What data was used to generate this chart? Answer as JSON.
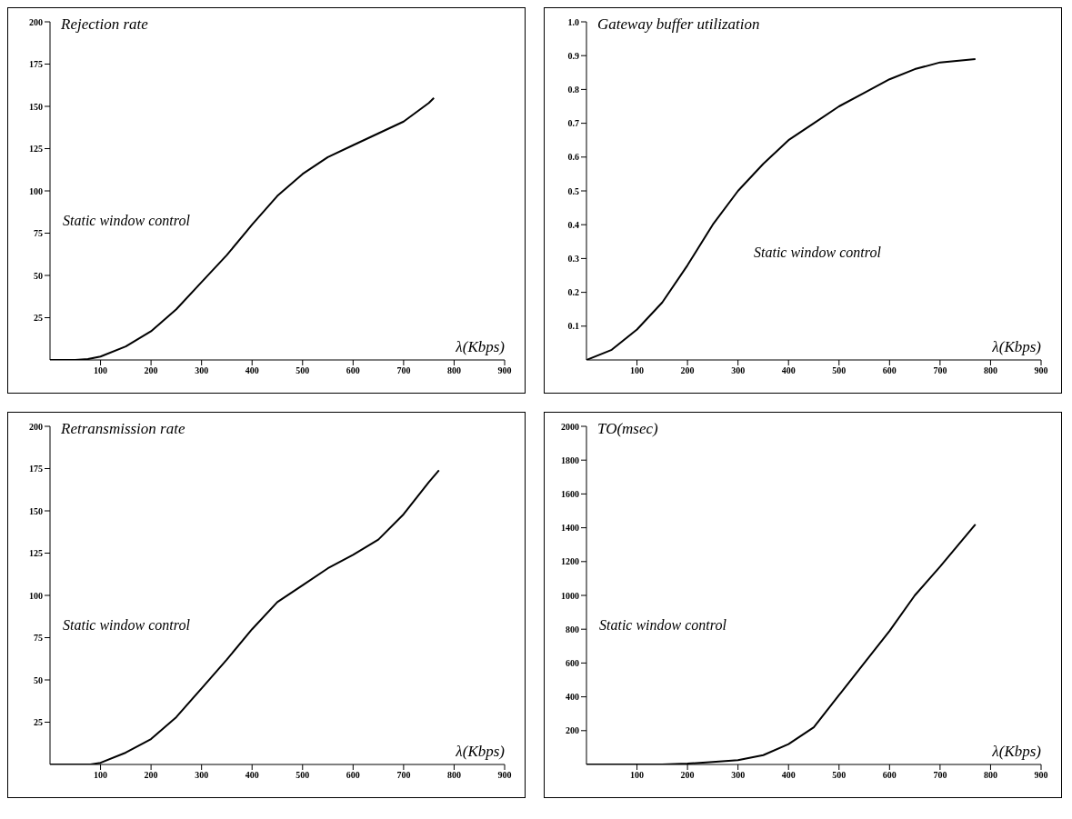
{
  "chart_data": [
    {
      "type": "line",
      "title": "Rejection rate",
      "xlabel": "λ(Kbps)",
      "annotations": [
        "Static window control"
      ],
      "xlim": [
        0,
        900
      ],
      "xticks": [
        100,
        200,
        300,
        400,
        500,
        600,
        700,
        800,
        900
      ],
      "ylim": [
        0,
        200
      ],
      "yticks": [
        25,
        50,
        75,
        100,
        125,
        150,
        175,
        200
      ],
      "grid": false,
      "legend": false,
      "marker": "none",
      "line_style": "solid",
      "series": [
        {
          "color": "#000000",
          "x": [
            0,
            50,
            75,
            100,
            150,
            200,
            250,
            300,
            350,
            400,
            450,
            500,
            550,
            600,
            650,
            700,
            750,
            760
          ],
          "values": [
            0,
            0,
            0.5,
            2,
            8,
            17,
            30,
            46,
            62,
            80,
            97,
            110,
            120,
            127,
            134,
            141,
            152,
            155
          ]
        }
      ]
    },
    {
      "type": "line",
      "title": "Gateway buffer utilization",
      "xlabel": "λ(Kbps)",
      "annotations": [
        "Static window control"
      ],
      "xlim": [
        0,
        900
      ],
      "xticks": [
        100,
        200,
        300,
        400,
        500,
        600,
        700,
        800,
        900
      ],
      "ylim": [
        0,
        1
      ],
      "yticks": [
        0.1,
        0.2,
        0.3,
        0.4,
        0.5,
        0.6,
        0.7,
        0.8,
        0.9,
        {
          "value": 1,
          "label": "1.0"
        }
      ],
      "grid": false,
      "legend": false,
      "marker": "none",
      "line_style": "solid",
      "series": [
        {
          "color": "#000000",
          "x": [
            0,
            50,
            100,
            150,
            200,
            250,
            300,
            350,
            400,
            450,
            500,
            550,
            600,
            650,
            700,
            770
          ],
          "values": [
            0,
            0.03,
            0.09,
            0.17,
            0.28,
            0.4,
            0.5,
            0.58,
            0.65,
            0.7,
            0.75,
            0.79,
            0.83,
            0.86,
            0.88,
            0.89
          ]
        }
      ]
    },
    {
      "type": "line",
      "title": "Retransmission rate",
      "xlabel": "λ(Kbps)",
      "annotations": [
        "Static window control"
      ],
      "xlim": [
        0,
        900
      ],
      "xticks": [
        100,
        200,
        300,
        400,
        500,
        600,
        700,
        800,
        900
      ],
      "ylim": [
        0,
        200
      ],
      "yticks": [
        25,
        50,
        75,
        100,
        125,
        150,
        175,
        200
      ],
      "grid": false,
      "legend": false,
      "marker": "none",
      "line_style": "solid",
      "series": [
        {
          "color": "#000000",
          "x": [
            0,
            80,
            100,
            150,
            200,
            250,
            300,
            350,
            400,
            450,
            500,
            550,
            600,
            650,
            700,
            750,
            770
          ],
          "values": [
            0,
            0,
            1,
            7,
            15,
            28,
            45,
            62,
            80,
            96,
            106,
            116,
            124,
            133,
            148,
            167,
            174
          ]
        }
      ]
    },
    {
      "type": "line",
      "title": "TO(msec)",
      "xlabel": "λ(Kbps)",
      "annotations": [
        "Static window control"
      ],
      "xlim": [
        0,
        900
      ],
      "xticks": [
        100,
        200,
        300,
        400,
        500,
        600,
        700,
        800,
        900
      ],
      "ylim": [
        0,
        2000
      ],
      "yticks": [
        200,
        400,
        600,
        800,
        1000,
        1200,
        1400,
        1600,
        1800,
        2000
      ],
      "grid": false,
      "legend": false,
      "marker": "none",
      "line_style": "solid",
      "series": [
        {
          "color": "#000000",
          "x": [
            0,
            150,
            200,
            250,
            300,
            350,
            400,
            450,
            500,
            550,
            600,
            650,
            700,
            770
          ],
          "values": [
            0,
            0,
            5,
            15,
            25,
            55,
            120,
            220,
            410,
            600,
            790,
            1000,
            1170,
            1420
          ]
        }
      ]
    }
  ]
}
